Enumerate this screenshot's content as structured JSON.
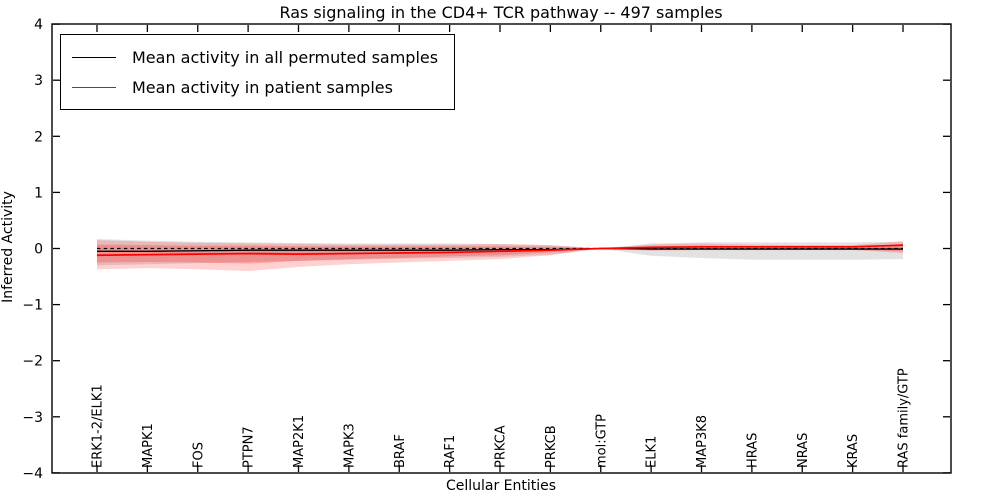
{
  "figure": {
    "title": "Ras signaling in the CD4+ TCR pathway -- 497 samples",
    "background_color": "#ffffff"
  },
  "legend": {
    "position": "upper left",
    "items": [
      {
        "label": "Mean activity in all permuted samples",
        "color": "#000000"
      },
      {
        "label": "Mean activity in patient samples",
        "color": "#ff0000"
      }
    ]
  },
  "chart_data": {
    "type": "line",
    "title": "Ras signaling in the CD4+ TCR pathway -- 497 samples",
    "xlabel": "Cellular Entities",
    "ylabel": "Inferred Activity",
    "ylim": [
      -4,
      4
    ],
    "yticks": [
      4,
      3,
      2,
      1,
      0,
      -1,
      -2,
      -3,
      -4
    ],
    "grid": false,
    "legend_position": "upper left",
    "categories": [
      "ERK1-2/ELK1",
      "MAPK1",
      "FOS",
      "PTPN7",
      "MAP2K1",
      "MAPK3",
      "BRAF",
      "RAF1",
      "PRKCA",
      "PRKCB",
      "mol:GTP",
      "ELK1",
      "MAP3K8",
      "HRAS",
      "NRAS",
      "KRAS",
      "RAS family/GTP"
    ],
    "zero_line": {
      "y": 0,
      "color": "#000000",
      "style": "dashed"
    },
    "series": [
      {
        "name": "Mean activity in all permuted samples",
        "color": "#000000",
        "values": [
          -0.05,
          -0.05,
          -0.04,
          -0.03,
          -0.03,
          -0.03,
          -0.03,
          -0.03,
          -0.02,
          -0.02,
          0,
          -0.01,
          -0.01,
          -0.01,
          -0.01,
          -0.01,
          -0.01
        ],
        "band_upper": [
          0.17,
          0.14,
          0.12,
          0.11,
          0.1,
          0.09,
          0.09,
          0.09,
          0.08,
          0.06,
          0,
          0.09,
          0.11,
          0.11,
          0.11,
          0.11,
          0.12
        ],
        "band_lower": [
          -0.3,
          -0.28,
          -0.26,
          -0.24,
          -0.22,
          -0.2,
          -0.18,
          -0.17,
          -0.15,
          -0.11,
          0,
          -0.13,
          -0.17,
          -0.2,
          -0.2,
          -0.2,
          -0.19
        ],
        "band_fill": "#bfbfbf",
        "band_opacity": 0.45
      },
      {
        "name": "Mean activity in patient samples",
        "color": "#ff0000",
        "values": [
          -0.12,
          -0.11,
          -0.1,
          -0.09,
          -0.1,
          -0.09,
          -0.08,
          -0.07,
          -0.05,
          -0.03,
          0,
          0.02,
          0.03,
          0.03,
          0.03,
          0.03,
          0.06
        ],
        "band_upper": [
          0.15,
          0.12,
          0.1,
          0.09,
          0.08,
          0.07,
          0.07,
          0.07,
          0.08,
          0.06,
          0,
          0.07,
          0.09,
          0.07,
          0.06,
          0.06,
          0.13
        ],
        "band_lower": [
          -0.37,
          -0.35,
          -0.37,
          -0.4,
          -0.33,
          -0.28,
          -0.25,
          -0.22,
          -0.19,
          -0.12,
          0,
          -0.04,
          -0.03,
          -0.03,
          -0.03,
          -0.03,
          -0.08
        ],
        "band_inner_upper": [
          0.07,
          0.06,
          0.05,
          0.05,
          0.04,
          0.04,
          0.04,
          0.04,
          0.04,
          0.03,
          0,
          0.04,
          0.05,
          0.04,
          0.03,
          0.03,
          0.07
        ],
        "band_inner_lower": [
          -0.25,
          -0.24,
          -0.25,
          -0.27,
          -0.22,
          -0.19,
          -0.17,
          -0.14,
          -0.12,
          -0.07,
          0,
          -0.02,
          -0.02,
          -0.02,
          -0.02,
          -0.02,
          -0.05
        ],
        "band_fill": "#ff0000",
        "band_opacity": 0.18,
        "band_inner_opacity": 0.22
      }
    ]
  }
}
